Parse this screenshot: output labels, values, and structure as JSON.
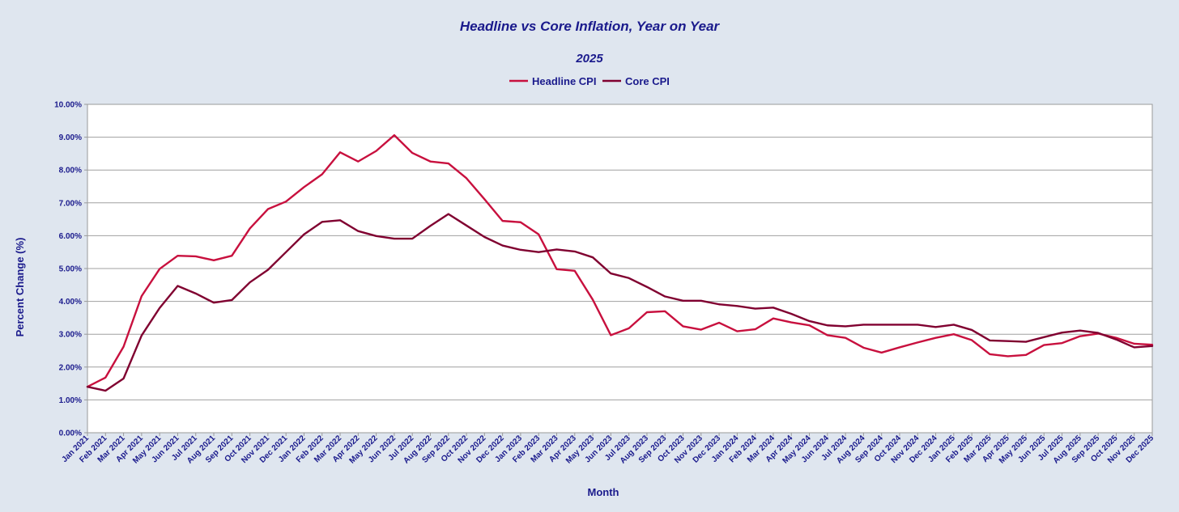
{
  "chart_data": {
    "type": "line",
    "title": "Headline vs Core Inflation, Year on Year",
    "subtitle": "2025",
    "xlabel": "Month",
    "ylabel": "Percent Change (%)",
    "ylim": [
      0,
      10
    ],
    "y_ticks": [
      "0.00%",
      "1.00%",
      "2.00%",
      "3.00%",
      "4.00%",
      "5.00%",
      "6.00%",
      "7.00%",
      "8.00%",
      "9.00%",
      "10.00%"
    ],
    "grid": true,
    "legend_position": "top-center",
    "categories": [
      "Jan 2021",
      "Feb 2021",
      "Mar 2021",
      "Apr 2021",
      "May 2021",
      "Jun 2021",
      "Jul 2021",
      "Aug 2021",
      "Sep 2021",
      "Oct 2021",
      "Nov 2021",
      "Dec 2021",
      "Jan 2022",
      "Feb 2022",
      "Mar 2022",
      "Apr 2022",
      "May 2022",
      "Jun 2022",
      "Jul 2022",
      "Aug 2022",
      "Sep 2022",
      "Oct 2022",
      "Nov 2022",
      "Dec 2022",
      "Jan 2023",
      "Feb 2023",
      "Mar 2023",
      "Apr 2023",
      "May 2023",
      "Jun 2023",
      "Jul 2023",
      "Aug 2023",
      "Sep 2023",
      "Oct 2023",
      "Nov 2023",
      "Dec 2023",
      "Jan 2024",
      "Feb 2024",
      "Mar 2024",
      "Apr 2024",
      "May 2024",
      "Jun 2024",
      "Jul 2024",
      "Aug 2024",
      "Sep 2024",
      "Oct 2024",
      "Nov 2024",
      "Dec 2024",
      "Jan 2025",
      "Feb 2025",
      "Mar 2025",
      "Apr 2025",
      "May 2025",
      "Jun 2025",
      "Jul 2025",
      "Aug 2025",
      "Sep 2025",
      "Oct 2025",
      "Nov 2025",
      "Dec 2025"
    ],
    "series": [
      {
        "name": "Headline CPI",
        "color": "#c8103e",
        "values": [
          1.4,
          1.68,
          2.62,
          4.16,
          4.99,
          5.39,
          5.37,
          5.25,
          5.39,
          6.22,
          6.81,
          7.04,
          7.48,
          7.87,
          8.54,
          8.26,
          8.58,
          9.06,
          8.52,
          8.26,
          8.2,
          7.75,
          7.11,
          6.45,
          6.41,
          6.04,
          4.98,
          4.93,
          4.05,
          2.97,
          3.18,
          3.67,
          3.7,
          3.24,
          3.14,
          3.35,
          3.09,
          3.15,
          3.48,
          3.36,
          3.27,
          2.97,
          2.89,
          2.59,
          2.44,
          2.6,
          2.75,
          2.89,
          3.0,
          2.82,
          2.39,
          2.33,
          2.37,
          2.67,
          2.73,
          2.94,
          3.02,
          2.89,
          2.71,
          2.68
        ]
      },
      {
        "name": "Core CPI",
        "color": "#800030",
        "values": [
          1.4,
          1.28,
          1.65,
          2.96,
          3.8,
          4.47,
          4.24,
          3.96,
          4.04,
          4.58,
          4.96,
          5.5,
          6.04,
          6.42,
          6.47,
          6.14,
          5.99,
          5.91,
          5.91,
          6.3,
          6.66,
          6.31,
          5.96,
          5.7,
          5.57,
          5.5,
          5.58,
          5.52,
          5.34,
          4.85,
          4.71,
          4.44,
          4.15,
          4.02,
          4.02,
          3.91,
          3.86,
          3.78,
          3.81,
          3.62,
          3.4,
          3.27,
          3.24,
          3.29,
          3.29,
          3.29,
          3.29,
          3.22,
          3.29,
          3.13,
          2.81,
          2.79,
          2.77,
          2.91,
          3.05,
          3.11,
          3.04,
          2.84,
          2.6,
          2.64
        ]
      }
    ]
  }
}
